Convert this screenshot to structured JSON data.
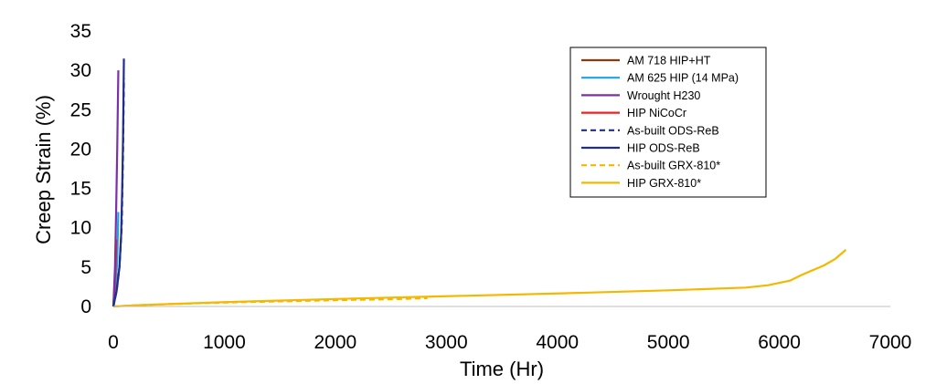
{
  "chart_data": {
    "type": "line",
    "title": "",
    "xlabel": "Time (Hr)",
    "ylabel": "Creep Strain (%)",
    "xlim": [
      0,
      7000
    ],
    "ylim": [
      0,
      35
    ],
    "xticks": [
      0,
      1000,
      2000,
      3000,
      4000,
      5000,
      6000,
      7000
    ],
    "yticks": [
      0,
      5,
      10,
      15,
      20,
      25,
      30,
      35
    ],
    "grid": false,
    "legend_position": "top-right",
    "series": [
      {
        "name": "AM 718 HIP+HT",
        "color": "#8B3A0E",
        "dash": "solid",
        "points": [
          [
            0,
            0
          ],
          [
            15,
            1.2
          ],
          [
            25,
            3.5
          ],
          [
            32,
            4.2
          ]
        ]
      },
      {
        "name": "AM 625 HIP (14 MPa)",
        "color": "#1FA2E0",
        "dash": "solid",
        "points": [
          [
            0,
            0
          ],
          [
            20,
            2
          ],
          [
            35,
            6
          ],
          [
            45,
            12
          ]
        ]
      },
      {
        "name": "Wrought H230",
        "color": "#7B2FA8",
        "dash": "solid",
        "points": [
          [
            0,
            0
          ],
          [
            15,
            5
          ],
          [
            25,
            12
          ],
          [
            35,
            20
          ],
          [
            45,
            30
          ]
        ]
      },
      {
        "name": "HIP NiCoCr",
        "color": "#E32626",
        "dash": "solid",
        "points": [
          [
            0,
            0
          ],
          [
            10,
            2
          ],
          [
            20,
            5
          ],
          [
            28,
            8.5
          ]
        ]
      },
      {
        "name": "As-built ODS-ReB",
        "color": "#1F2E8C",
        "dash": "dashed",
        "points": [
          [
            0,
            0
          ],
          [
            30,
            2
          ],
          [
            55,
            5
          ],
          [
            75,
            10
          ],
          [
            88,
            20
          ],
          [
            95,
            29
          ]
        ]
      },
      {
        "name": "HIP ODS-ReB",
        "color": "#1F2E8C",
        "dash": "solid",
        "points": [
          [
            0,
            0
          ],
          [
            30,
            2
          ],
          [
            55,
            5
          ],
          [
            70,
            9
          ],
          [
            80,
            15
          ],
          [
            88,
            22
          ],
          [
            95,
            31.5
          ]
        ]
      },
      {
        "name": "As-built GRX-810*",
        "color": "#F5B800",
        "dash": "dashed",
        "points": [
          [
            0,
            0
          ],
          [
            200,
            0.15
          ],
          [
            500,
            0.3
          ],
          [
            1000,
            0.5
          ],
          [
            1500,
            0.65
          ],
          [
            2000,
            0.8
          ],
          [
            2500,
            0.92
          ],
          [
            2830,
            1.05
          ]
        ]
      },
      {
        "name": "HIP GRX-810*",
        "color": "#F5B800",
        "dash": "solid",
        "points": [
          [
            0,
            0
          ],
          [
            200,
            0.15
          ],
          [
            500,
            0.3
          ],
          [
            1000,
            0.55
          ],
          [
            2000,
            0.95
          ],
          [
            3000,
            1.3
          ],
          [
            4000,
            1.65
          ],
          [
            5000,
            2.05
          ],
          [
            5700,
            2.4
          ],
          [
            5900,
            2.7
          ],
          [
            6100,
            3.3
          ],
          [
            6200,
            4.0
          ],
          [
            6400,
            5.2
          ],
          [
            6500,
            6.0
          ],
          [
            6600,
            7.2
          ]
        ]
      }
    ]
  }
}
